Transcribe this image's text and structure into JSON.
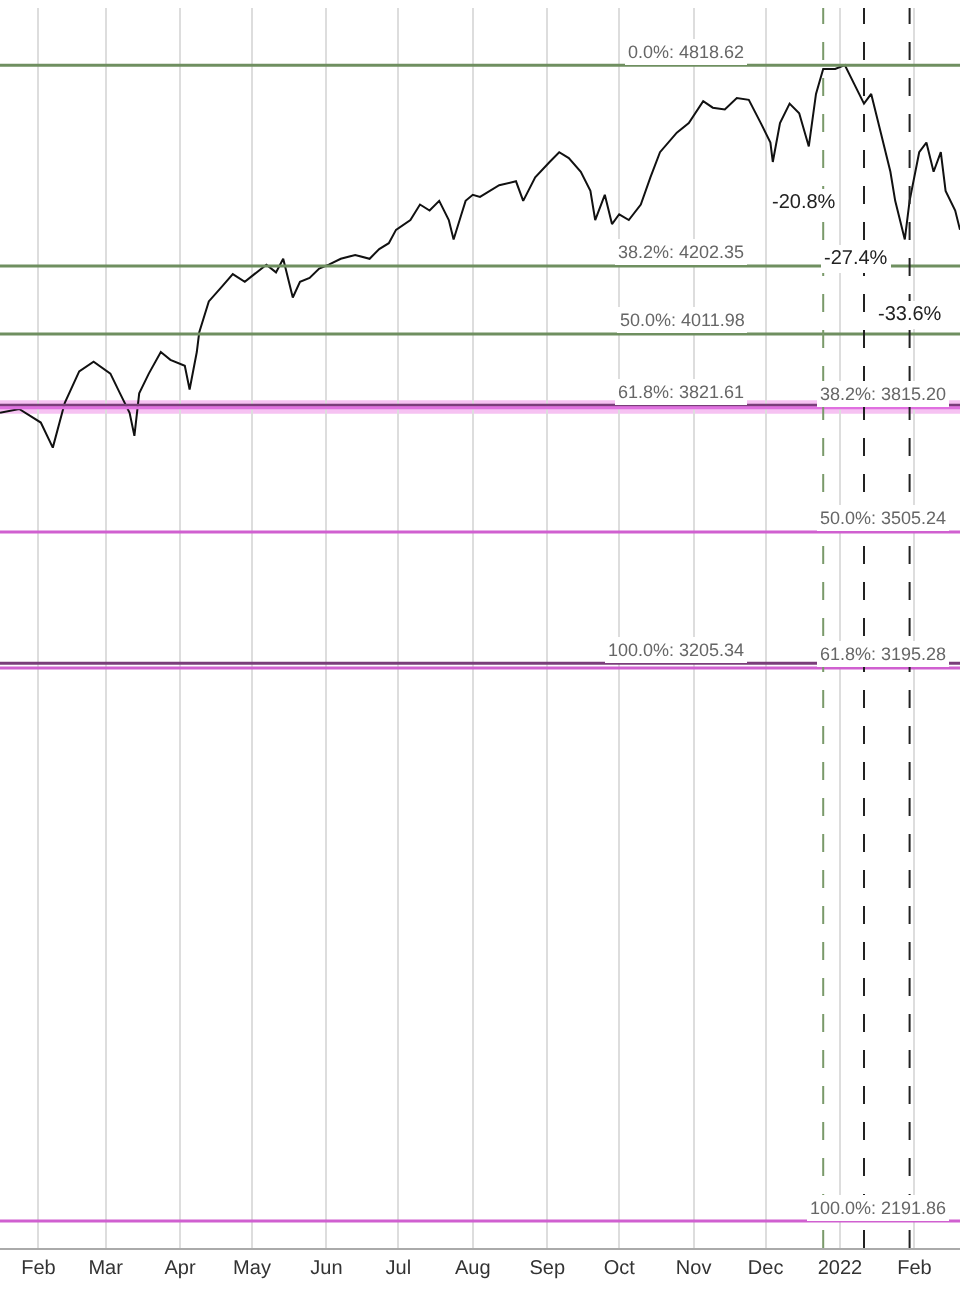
{
  "chart_data": {
    "type": "line",
    "log": true,
    "tick_labels": "x",
    "grid": "x",
    "xlim": [
      "2021-01-16",
      "2022-02-20"
    ],
    "ylim": [
      2152,
      5010
    ],
    "xticks": [
      {
        "value": "2021-02-01",
        "label": "Feb"
      },
      {
        "value": "2021-03-01",
        "label": "Mar"
      },
      {
        "value": "2021-04-01",
        "label": "Apr"
      },
      {
        "value": "2021-05-01",
        "label": "May"
      },
      {
        "value": "2021-06-01",
        "label": "Jun"
      },
      {
        "value": "2021-07-01",
        "label": "Jul"
      },
      {
        "value": "2021-08-01",
        "label": "Aug"
      },
      {
        "value": "2021-09-01",
        "label": "Sep"
      },
      {
        "value": "2021-10-01",
        "label": "Oct"
      },
      {
        "value": "2021-11-01",
        "label": "Nov"
      },
      {
        "value": "2021-12-01",
        "label": "Dec"
      },
      {
        "value": "2022-01-01",
        "label": "2022"
      },
      {
        "value": "2022-02-01",
        "label": "Feb"
      }
    ],
    "x": [
      "2021-01-16",
      "2021-01-24",
      "2021-02-02",
      "2021-02-07",
      "2021-02-12",
      "2021-02-18",
      "2021-02-24",
      "2021-03-03",
      "2021-03-07",
      "2021-03-11",
      "2021-03-13",
      "2021-03-15",
      "2021-03-19",
      "2021-03-24",
      "2021-03-28",
      "2021-04-03",
      "2021-04-05",
      "2021-04-08",
      "2021-04-09",
      "2021-04-13",
      "2021-04-18",
      "2021-04-23",
      "2021-04-28",
      "2021-05-02",
      "2021-05-07",
      "2021-05-11",
      "2021-05-14",
      "2021-05-18",
      "2021-05-21",
      "2021-05-25",
      "2021-05-29",
      "2021-06-02",
      "2021-06-07",
      "2021-06-13",
      "2021-06-19",
      "2021-06-23",
      "2021-06-27",
      "2021-06-30",
      "2021-07-06",
      "2021-07-10",
      "2021-07-14",
      "2021-07-18",
      "2021-07-22",
      "2021-07-24",
      "2021-07-27",
      "2021-07-29",
      "2021-08-01",
      "2021-08-04",
      "2021-08-12",
      "2021-08-19",
      "2021-08-22",
      "2021-08-27",
      "2021-09-02",
      "2021-09-06",
      "2021-09-10",
      "2021-09-15",
      "2021-09-19",
      "2021-09-21",
      "2021-09-25",
      "2021-09-28",
      "2021-10-01",
      "2021-10-05",
      "2021-10-10",
      "2021-10-14",
      "2021-10-18",
      "2021-10-25",
      "2021-10-30",
      "2021-11-05",
      "2021-11-09",
      "2021-11-14",
      "2021-11-19",
      "2021-11-24",
      "2021-11-29",
      "2021-12-03",
      "2021-12-04",
      "2021-12-07",
      "2021-12-11",
      "2021-12-15",
      "2021-12-19",
      "2021-12-22",
      "2021-12-25",
      "2021-12-30",
      "2022-01-03",
      "2022-01-07",
      "2022-01-11",
      "2022-01-14",
      "2022-01-18",
      "2022-01-22",
      "2022-01-24",
      "2022-01-28",
      "2022-01-30",
      "2022-02-03",
      "2022-02-06",
      "2022-02-09",
      "2022-02-12",
      "2022-02-14",
      "2022-02-18",
      "2022-02-20"
    ],
    "series": [
      {
        "color": "#111111",
        "values": [
          3802,
          3812,
          3777,
          3713,
          3828,
          3911,
          3937,
          3905,
          3853,
          3802,
          3743,
          3853,
          3905,
          3963,
          3942,
          3926,
          3863,
          3963,
          4016,
          4102,
          4140,
          4179,
          4157,
          4179,
          4206,
          4184,
          4223,
          4113,
          4157,
          4168,
          4195,
          4206,
          4223,
          4234,
          4223,
          4251,
          4268,
          4307,
          4336,
          4382,
          4364,
          4393,
          4336,
          4279,
          4347,
          4393,
          4411,
          4405,
          4440,
          4452,
          4393,
          4464,
          4511,
          4541,
          4523,
          4481,
          4423,
          4336,
          4411,
          4324,
          4353,
          4336,
          4382,
          4464,
          4541,
          4602,
          4632,
          4702,
          4681,
          4675,
          4712,
          4706,
          4632,
          4571,
          4511,
          4632,
          4694,
          4663,
          4559,
          4725,
          4806,
          4806,
          4819,
          4756,
          4694,
          4725,
          4602,
          4481,
          4393,
          4279,
          4393,
          4541,
          4571,
          4481,
          4541,
          4423,
          4364,
          4307
        ]
      }
    ],
    "ref_lines": [
      {
        "axis": "y",
        "value": 4818.62,
        "label": "0.0%: 4818.62",
        "color": "#6f8f60"
      },
      {
        "axis": "y",
        "value": 4202.35,
        "label": "38.2%: 4202.35",
        "color": "#6f8f60"
      },
      {
        "axis": "y",
        "value": 4011.98,
        "label": "50.0%: 4011.98",
        "color": "#6f8f60"
      },
      {
        "axis": "y",
        "value": 3821.61,
        "label": "61.8%: 3821.61",
        "color": "#7a3d7a"
      },
      {
        "axis": "y",
        "value": 3205.34,
        "label": "100.0%: 3205.34",
        "color": "#7a3d7a"
      },
      {
        "axis": "y",
        "value": 3815.2,
        "label": "38.2%: 3815.20",
        "color": "#e070e0"
      },
      {
        "axis": "y",
        "value": 3505.24,
        "label": "50.0%: 3505.24",
        "color": "#d060d0"
      },
      {
        "axis": "y",
        "value": 3195.28,
        "label": "61.8%: 3195.28",
        "color": "#d060d0"
      },
      {
        "axis": "y",
        "value": 2191.86,
        "label": "100.0%: 2191.86",
        "color": "#d060d0"
      },
      {
        "axis": "x",
        "value": "2021-12-25",
        "label": null,
        "color": "#7a9a6a",
        "line_style": "dashed"
      },
      {
        "axis": "x",
        "value": "2022-01-11",
        "label": null,
        "color": "#222222",
        "line_style": "dashed"
      },
      {
        "axis": "x",
        "value": "2022-01-30",
        "label": null,
        "color": "#222222",
        "line_style": "dashed"
      }
    ],
    "bands": [
      {
        "axis": "y",
        "from": 3800,
        "to": 3835,
        "color": "#f6c2f2"
      }
    ],
    "annotations": [
      "-20.8%",
      "-27.4%",
      "-33.6%"
    ]
  }
}
